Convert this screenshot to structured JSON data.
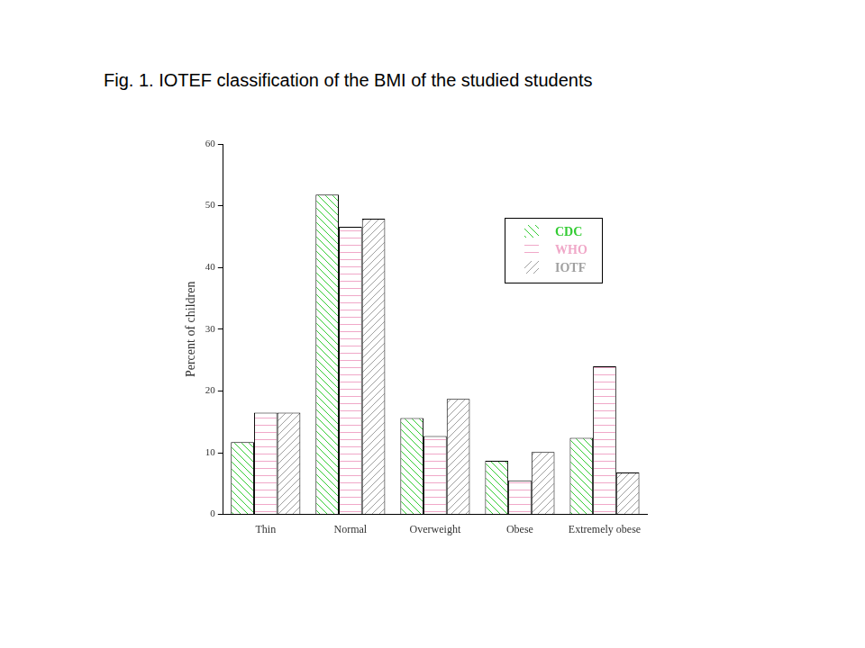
{
  "chart_data": {
    "type": "bar",
    "title": "Fig. 1. IOTEF classification of the BMI of the studied students",
    "ylabel": "Percent of children",
    "categories": [
      "Thin",
      "Normal",
      "Overweight",
      "Obese",
      "Extremely obese"
    ],
    "series": [
      {
        "name": "CDC",
        "color": "#33cc33",
        "values": [
          11.7,
          51.8,
          15.6,
          8.7,
          12.4
        ]
      },
      {
        "name": "WHO",
        "color": "#f0a8c8",
        "values": [
          16.5,
          46.6,
          12.7,
          5.5,
          24.0
        ]
      },
      {
        "name": "IOTF",
        "color": "#a0a0a0",
        "values": [
          16.5,
          47.9,
          18.7,
          10.1,
          6.8
        ]
      }
    ],
    "ylim": [
      0,
      60
    ],
    "yticks": [
      0,
      10,
      20,
      30,
      40,
      50,
      60
    ],
    "grid": false,
    "legend": "upper right"
  }
}
